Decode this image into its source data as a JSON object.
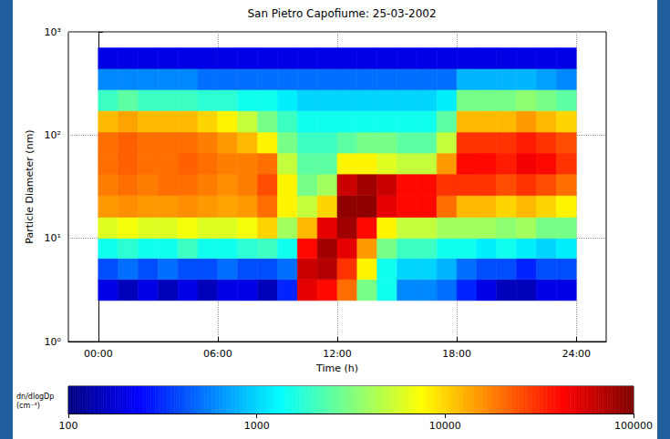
{
  "chart_data": {
    "type": "heatmap",
    "title": "San Pietro Capofiume: 25-03-2002",
    "x_label": "Time (h)",
    "y_label": "Particle Diameter (nm)",
    "log": "y",
    "grid": true,
    "xlim": [
      -1.5,
      25.5
    ],
    "xticks": [
      {
        "value": 0,
        "label": "00:00"
      },
      {
        "value": 6,
        "label": "06:00"
      },
      {
        "value": 12,
        "label": "12:00"
      },
      {
        "value": 18,
        "label": "18:00"
      },
      {
        "value": 24,
        "label": "24:00"
      }
    ],
    "ylim": [
      1,
      1000
    ],
    "yticks": [
      {
        "value": 1,
        "label": "10⁰"
      },
      {
        "value": 10,
        "label": "10¹"
      },
      {
        "value": 100,
        "label": "10²"
      },
      {
        "value": 1000,
        "label": "10³"
      }
    ],
    "x": [
      0,
      1,
      2,
      3,
      4,
      5,
      6,
      7,
      8,
      9,
      10,
      11,
      12,
      13,
      14,
      15,
      16,
      17,
      18,
      19,
      20,
      21,
      22,
      23,
      24
    ],
    "y": [
      2.5,
      4,
      6.4,
      10,
      16,
      26,
      42,
      67,
      107,
      172,
      275,
      440,
      700
    ],
    "cells": [
      [
        200,
        150,
        200,
        150,
        200,
        150,
        200,
        200,
        150,
        300,
        50000,
        40000,
        20000,
        3000,
        1500,
        600,
        600,
        500,
        300,
        200,
        150,
        150,
        200,
        200
      ],
      [
        400,
        500,
        400,
        500,
        400,
        400,
        500,
        400,
        400,
        500,
        60000,
        70000,
        30000,
        8000,
        1500,
        1000,
        1000,
        800,
        500,
        400,
        400,
        300,
        400,
        400
      ],
      [
        1500,
        1800,
        1500,
        1500,
        2000,
        1500,
        1500,
        1800,
        2000,
        1500,
        40000,
        80000,
        50000,
        15000,
        3000,
        2000,
        2000,
        1500,
        1500,
        1200,
        1500,
        1200,
        1000,
        1200
      ],
      [
        6000,
        7000,
        6000,
        6000,
        7000,
        6000,
        6000,
        7000,
        10000,
        4000,
        12000,
        50000,
        80000,
        40000,
        8000,
        5000,
        5000,
        4000,
        4000,
        4000,
        3500,
        4000,
        3000,
        3000
      ],
      [
        15000,
        16000,
        15000,
        15000,
        16000,
        15000,
        14000,
        15000,
        20000,
        8000,
        5000,
        10000,
        90000,
        90000,
        50000,
        40000,
        40000,
        20000,
        12000,
        12000,
        10000,
        12000,
        10000,
        8000
      ],
      [
        18000,
        20000,
        18000,
        20000,
        20000,
        18000,
        16000,
        18000,
        25000,
        8000,
        3000,
        4000,
        60000,
        80000,
        60000,
        40000,
        40000,
        30000,
        30000,
        30000,
        25000,
        30000,
        25000,
        20000
      ],
      [
        20000,
        22000,
        20000,
        20000,
        22000,
        20000,
        18000,
        18000,
        20000,
        5000,
        2500,
        2500,
        8000,
        8000,
        6000,
        5000,
        5000,
        15000,
        40000,
        40000,
        35000,
        45000,
        40000,
        30000
      ],
      [
        20000,
        22000,
        20000,
        20000,
        20000,
        18000,
        15000,
        12000,
        8000,
        3000,
        2000,
        2000,
        2500,
        3000,
        3000,
        2500,
        2500,
        5000,
        30000,
        30000,
        30000,
        35000,
        30000,
        25000
      ],
      [
        12000,
        14000,
        12000,
        12000,
        12000,
        10000,
        8000,
        5000,
        3000,
        2000,
        1500,
        1500,
        1500,
        1500,
        1500,
        1500,
        1500,
        2500,
        12000,
        12000,
        12000,
        15000,
        12000,
        10000
      ],
      [
        2000,
        2500,
        2000,
        2000,
        2000,
        1800,
        1800,
        1500,
        1500,
        1200,
        1000,
        1000,
        1000,
        1000,
        1000,
        1000,
        1000,
        1200,
        3000,
        3000,
        3000,
        3500,
        3000,
        2500
      ],
      [
        600,
        600,
        600,
        600,
        600,
        500,
        500,
        500,
        500,
        500,
        500,
        500,
        500,
        500,
        500,
        500,
        500,
        500,
        800,
        800,
        800,
        800,
        700,
        600
      ],
      [
        200,
        200,
        200,
        200,
        200,
        200,
        200,
        200,
        200,
        200,
        200,
        200,
        200,
        200,
        200,
        200,
        200,
        200,
        200,
        200,
        200,
        200,
        200,
        200
      ]
    ],
    "colorbar_label": "dn/dlogDp (cm⁻³)",
    "colorbar_lim": [
      100,
      100000
    ],
    "colorbar_ticks": [
      100,
      1000,
      10000,
      100000
    ]
  }
}
